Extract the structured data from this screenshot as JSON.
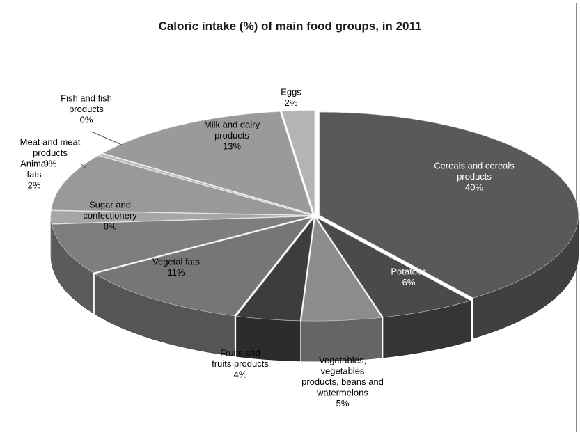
{
  "chart_data": {
    "type": "pie",
    "style": "3d-exploded",
    "title": "Caloric intake (%) of main food groups, in 2011",
    "legend": "none",
    "slices": [
      {
        "label": [
          "Cereals and cereals",
          "products"
        ],
        "value": 40,
        "value_label": "40%",
        "color": "#595959",
        "text_color": "#ffffff"
      },
      {
        "label": [
          "Potatoes"
        ],
        "value": 6,
        "value_label": "6%",
        "color": "#4a4a4a",
        "text_color": "#ffffff"
      },
      {
        "label": [
          "Vegetables,",
          "vegetables",
          "products, beans and",
          "watermelons"
        ],
        "value": 5,
        "value_label": "5%",
        "color": "#8c8c8c",
        "text_color": "#000000"
      },
      {
        "label": [
          "Fruits and",
          "fruits products"
        ],
        "value": 4,
        "value_label": "4%",
        "color": "#3d3d3d",
        "text_color": "#000000"
      },
      {
        "label": [
          "Vegetal fats"
        ],
        "value": 11,
        "value_label": "11%",
        "color": "#767676",
        "text_color": "#000000"
      },
      {
        "label": [
          "Sugar and",
          "confectionery"
        ],
        "value": 8,
        "value_label": "8%",
        "color": "#7e7e7e",
        "text_color": "#000000"
      },
      {
        "label": [
          "Animal",
          "fats"
        ],
        "value": 2,
        "value_label": "2%",
        "color": "#a6a6a6",
        "text_color": "#000000"
      },
      {
        "label": [
          "Meat and meat",
          "products"
        ],
        "value": 9,
        "value_label": "9%",
        "color": "#999999",
        "text_color": "#000000"
      },
      {
        "label": [
          "Fish and fish",
          "products"
        ],
        "value": 0.3,
        "value_label": "0%",
        "color": "#bcbcbc",
        "text_color": "#000000"
      },
      {
        "label": [
          "Milk and dairy",
          "products"
        ],
        "value": 13,
        "value_label": "13%",
        "color": "#9a9a9a",
        "text_color": "#000000"
      },
      {
        "label": [
          "Eggs"
        ],
        "value": 2,
        "value_label": "2%",
        "color": "#b4b4b4",
        "text_color": "#000000"
      }
    ]
  }
}
